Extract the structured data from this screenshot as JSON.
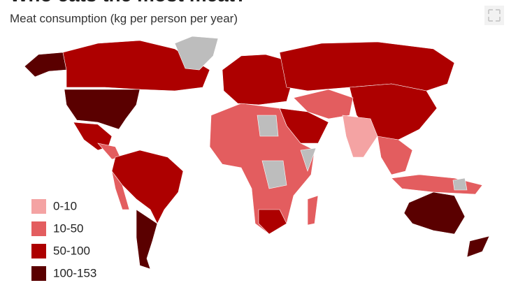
{
  "header": {
    "title": "Who eats the most meat?",
    "subtitle": "Meat consumption (kg per person per year)"
  },
  "legend": {
    "items": [
      {
        "label": "0-10",
        "color": "#f4a3a3"
      },
      {
        "label": "10-50",
        "color": "#e35d5f"
      },
      {
        "label": "50-100",
        "color": "#ad0000"
      },
      {
        "label": "100-153",
        "color": "#5a0000"
      }
    ]
  }
}
